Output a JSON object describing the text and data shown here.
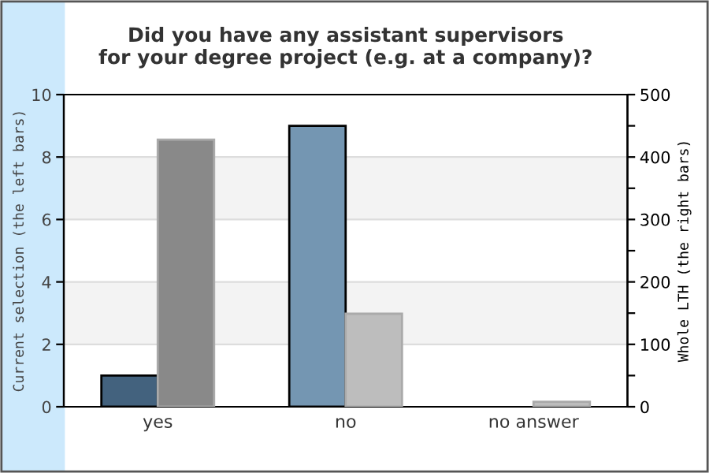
{
  "chart_data": {
    "type": "bar",
    "title": "Did you have any assistant supervisors\nfor your degree project (e.g. at a company)?",
    "ylabel": "Current selection (the left bars)",
    "y2label": "Whole LTH (the right bars)",
    "categories": [
      "yes",
      "no",
      "no answer"
    ],
    "series": [
      {
        "colors": [
          "#43627e",
          "#7496b2",
          "#7496b2"
        ],
        "values": [
          1,
          9,
          0
        ]
      },
      {
        "colors": [
          "#898989",
          "#bdbdbd",
          "#bdbdbd"
        ],
        "values": [
          428,
          149,
          8
        ],
        "axis": "y2"
      }
    ],
    "ylim": [
      0,
      10
    ],
    "yticks": [
      0,
      2,
      4,
      6,
      8,
      10
    ],
    "y2lim": [
      0,
      500
    ],
    "y2ticks": [
      0,
      {
        "value": 50,
        "label": null
      },
      100,
      {
        "value": 150,
        "label": null
      },
      200,
      {
        "value": 250,
        "label": null
      },
      300,
      {
        "value": 350,
        "label": null
      },
      400,
      {
        "value": 450,
        "label": null
      },
      500
    ],
    "bands": [
      {
        "axis": "y",
        "from": 2,
        "to": 4,
        "color": "#f3f3f3"
      },
      {
        "axis": "y",
        "from": 6,
        "to": 8,
        "color": "#f3f3f3"
      }
    ],
    "grid": "y",
    "legend": false
  }
}
